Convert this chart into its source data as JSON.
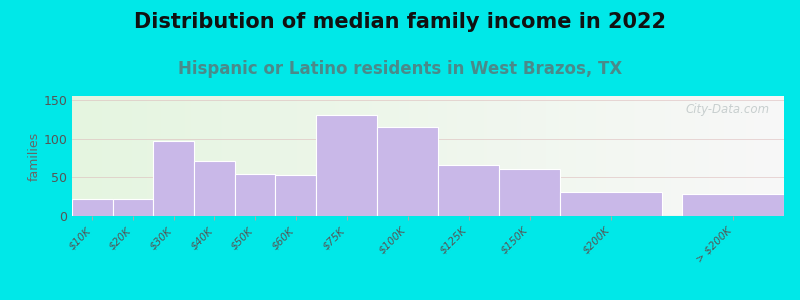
{
  "title": "Distribution of median family income in 2022",
  "subtitle": "Hispanic or Latino residents in West Brazos, TX",
  "ylabel": "families",
  "categories": [
    "$10K",
    "$20K",
    "$30K",
    "$40K",
    "$50K",
    "$60K",
    "$75K",
    "$100K",
    "$125K",
    "$150K",
    "$200K",
    "> $200K"
  ],
  "values": [
    22,
    22,
    97,
    71,
    54,
    53,
    130,
    115,
    66,
    61,
    31,
    28
  ],
  "bar_color": "#c9b8e8",
  "bar_edge_color": "#ffffff",
  "background_outer": "#00e8e8",
  "background_inner_left": "#e5f5e0",
  "background_inner_right": "#f8f8f8",
  "title_fontsize": 15,
  "subtitle_fontsize": 12,
  "subtitle_color": "#4a8a8a",
  "ylabel_color": "#666666",
  "yticks": [
    0,
    50,
    100,
    150
  ],
  "ylim": [
    0,
    155
  ],
  "watermark": "City-Data.com",
  "watermark_color": "#c0c8c8",
  "bar_widths": [
    1,
    1,
    1,
    1,
    1,
    1,
    1.5,
    1.5,
    1.5,
    1.5,
    2.5,
    2.5
  ],
  "bar_lefts": [
    0,
    1,
    2,
    3,
    4,
    5,
    6,
    7.5,
    9,
    10.5,
    12,
    15
  ]
}
